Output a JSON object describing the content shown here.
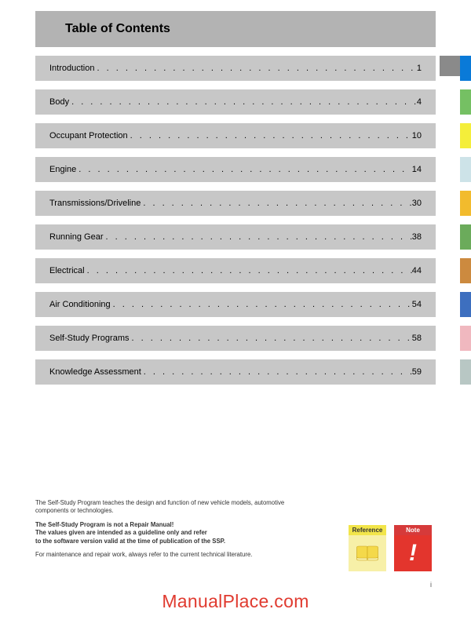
{
  "header": {
    "title": "Table of Contents"
  },
  "toc": [
    {
      "label": "Introduction",
      "page": "1",
      "tab_color": "#0a7ad8"
    },
    {
      "label": "Body",
      "page": "4",
      "tab_color": "#75c063"
    },
    {
      "label": "Occupant Protection",
      "page": "10",
      "tab_color": "#f4ee3a"
    },
    {
      "label": "Engine",
      "page": "14",
      "tab_color": "#cde3e8"
    },
    {
      "label": "Transmissions/Driveline",
      "page": "30",
      "tab_color": "#f2bb2d"
    },
    {
      "label": "Running Gear",
      "page": "38",
      "tab_color": "#6bab5b"
    },
    {
      "label": "Electrical",
      "page": "44",
      "tab_color": "#cc8a3f"
    },
    {
      "label": "Air Conditioning",
      "page": "54",
      "tab_color": "#3d6fbf"
    },
    {
      "label": "Self-Study Programs",
      "page": "58",
      "tab_color": "#f0b8bf"
    },
    {
      "label": "Knowledge Assessment",
      "page": "59",
      "tab_color": "#b8c7c4"
    }
  ],
  "footer": {
    "line1": "The Self-Study Program teaches the design and function of new vehicle models, automotive components or technologies.",
    "line2a": "The Self-Study Program is not a Repair Manual!",
    "line2b": "The values given are intended as a guideline only and refer",
    "line2c": "to the software version valid at the time of publication of the SSP.",
    "line3": "For maintenance and repair work, always refer to the current technical literature."
  },
  "badges": {
    "reference": {
      "label": "Reference",
      "header_bg": "#f2e54a",
      "body_bg": "#f7f0a8"
    },
    "note": {
      "label": "Note",
      "header_bg": "#d63a3a",
      "body_bg": "#e3352d"
    }
  },
  "watermark": "ManualPlace.com",
  "page_marker": "i"
}
